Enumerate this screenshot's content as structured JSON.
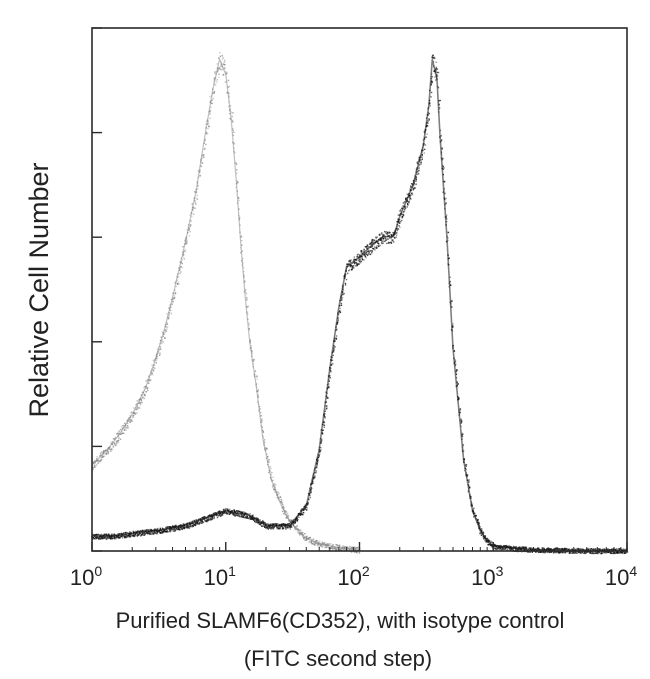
{
  "chart_data": {
    "type": "histogram-overlay",
    "title": "",
    "xlabel_lines": [
      "Purified SLAMF6(CD352), with isotype control",
      "(FITC second step)"
    ],
    "ylabel": "Relative Cell Number",
    "x_scale": "log",
    "xlim": [
      1,
      10000
    ],
    "ylim": [
      0,
      100
    ],
    "x_ticks": [
      {
        "value": 1,
        "base": "10",
        "exp": "0"
      },
      {
        "value": 10,
        "base": "10",
        "exp": "1"
      },
      {
        "value": 100,
        "base": "10",
        "exp": "2"
      },
      {
        "value": 1000,
        "base": "10",
        "exp": "3"
      },
      {
        "value": 10000,
        "base": "10",
        "exp": "4"
      }
    ],
    "y_ticks": [
      0,
      20,
      40,
      60,
      80,
      100
    ],
    "grid": false,
    "legend": "none",
    "series": [
      {
        "role": "isotype-control",
        "color": "#8a8a8a",
        "x": [
          1,
          1.3,
          1.6,
          2,
          2.5,
          3,
          3.5,
          4,
          5,
          6,
          7,
          8,
          9,
          10,
          11,
          12,
          13,
          14,
          15,
          17,
          19,
          22,
          26,
          30,
          35,
          40,
          50,
          60,
          80,
          100
        ],
        "y": [
          17,
          20,
          23,
          27,
          32,
          38,
          44,
          50,
          61,
          71,
          82,
          91,
          97,
          94,
          85,
          73,
          60,
          50,
          42,
          32,
          22,
          14,
          9,
          6,
          4,
          2.5,
          1.5,
          1,
          0.5,
          0.2
        ]
      },
      {
        "role": "SLAMF6-stained",
        "color": "#161616",
        "x": [
          1,
          1.5,
          2,
          3,
          5,
          8,
          10,
          15,
          20,
          30,
          40,
          50,
          60,
          70,
          80,
          100,
          120,
          150,
          180,
          200,
          250,
          300,
          330,
          350,
          380,
          400,
          450,
          500,
          600,
          700,
          800,
          900,
          1000,
          1500,
          2000,
          3000,
          5000,
          10000
        ],
        "y": [
          3,
          3,
          3.5,
          4,
          5,
          7,
          8,
          7,
          5,
          5,
          9,
          20,
          36,
          48,
          56,
          58,
          60,
          62,
          62,
          66,
          72,
          80,
          88,
          97,
          93,
          82,
          62,
          40,
          18,
          8,
          4,
          2,
          1,
          0.5,
          0.3,
          0.2,
          0.1,
          0.1
        ]
      }
    ]
  }
}
